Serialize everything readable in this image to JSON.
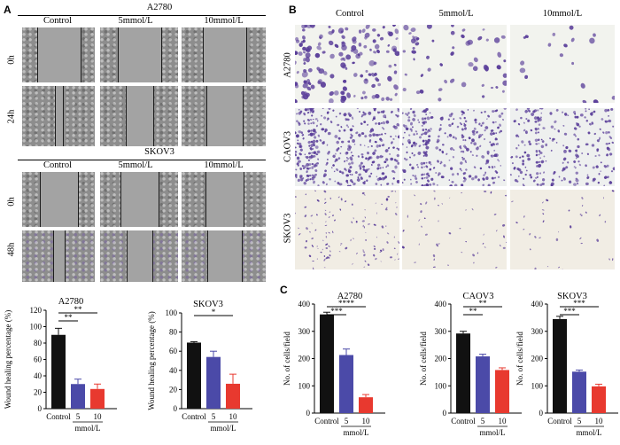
{
  "panelA": {
    "label": "A",
    "group1": {
      "title": "A2780",
      "columns": [
        "Control",
        "5mmol/L",
        "10mmol/L"
      ],
      "rows": [
        "0h",
        "24h"
      ]
    },
    "group2": {
      "title": "SKOV3",
      "columns": [
        "Control",
        "5mmol/L",
        "10mmol/L"
      ],
      "rows": [
        "0h",
        "48h"
      ]
    }
  },
  "panelB": {
    "label": "B",
    "columns": [
      "Control",
      "5mmol/L",
      "10mmol/L"
    ],
    "rows": [
      "A2780",
      "CAOV3",
      "SKOV3"
    ]
  },
  "panelC_label": "C",
  "colors": {
    "control": "#111111",
    "dose5": "#4b4aa8",
    "dose10": "#e8392f",
    "stain": "#5b3f9a"
  },
  "chart_data": [
    {
      "type": "bar",
      "title": "A2780",
      "categories": [
        "Control",
        "5",
        "10"
      ],
      "xlabel": "mmol/L",
      "ylabel": "Wound healing percentage (%)",
      "values": [
        90,
        30,
        24
      ],
      "errors": [
        8,
        6,
        6
      ],
      "ylim": [
        0,
        120
      ],
      "yticks": [
        0,
        20,
        40,
        60,
        80,
        100,
        120
      ],
      "significance": [
        {
          "from": 0,
          "to": 1,
          "label": "**"
        },
        {
          "from": 0,
          "to": 2,
          "label": "**"
        }
      ]
    },
    {
      "type": "bar",
      "title": "SKOV3",
      "categories": [
        "Control",
        "5",
        "10"
      ],
      "xlabel": "mmol/L",
      "ylabel": "Wound healing percentage (%)",
      "values": [
        69,
        54,
        26
      ],
      "errors": [
        1,
        6,
        10
      ],
      "ylim": [
        0,
        100
      ],
      "yticks": [
        0,
        20,
        40,
        60,
        80,
        100
      ],
      "significance": [
        {
          "from": 0,
          "to": 2,
          "label": "*"
        }
      ]
    },
    {
      "type": "bar",
      "title": "A2780",
      "categories": [
        "Control",
        "5",
        "10"
      ],
      "xlabel": "mmol/L",
      "ylabel": "No. of cells/field",
      "values": [
        362,
        213,
        58
      ],
      "errors": [
        8,
        22,
        10
      ],
      "ylim": [
        0,
        400
      ],
      "yticks": [
        0,
        100,
        200,
        300,
        400
      ],
      "significance": [
        {
          "from": 0,
          "to": 1,
          "label": "***"
        },
        {
          "from": 0,
          "to": 2,
          "label": "****"
        }
      ]
    },
    {
      "type": "bar",
      "title": "CAOV3",
      "categories": [
        "Control",
        "5",
        "10"
      ],
      "xlabel": "mmol/L",
      "ylabel": "No. of cells/field",
      "values": [
        292,
        208,
        158
      ],
      "errors": [
        8,
        8,
        8
      ],
      "ylim": [
        0,
        400
      ],
      "yticks": [
        0,
        100,
        200,
        300,
        400
      ],
      "significance": [
        {
          "from": 0,
          "to": 1,
          "label": "**"
        },
        {
          "from": 0,
          "to": 2,
          "label": "**"
        }
      ]
    },
    {
      "type": "bar",
      "title": "SKOV3",
      "categories": [
        "Control",
        "5",
        "10"
      ],
      "xlabel": "mmol/L",
      "ylabel": "No. of cells/field",
      "values": [
        345,
        152,
        98
      ],
      "errors": [
        10,
        6,
        8
      ],
      "ylim": [
        0,
        400
      ],
      "yticks": [
        0,
        100,
        200,
        300,
        400
      ],
      "significance": [
        {
          "from": 0,
          "to": 1,
          "label": "***"
        },
        {
          "from": 0,
          "to": 2,
          "label": "***"
        }
      ]
    }
  ]
}
